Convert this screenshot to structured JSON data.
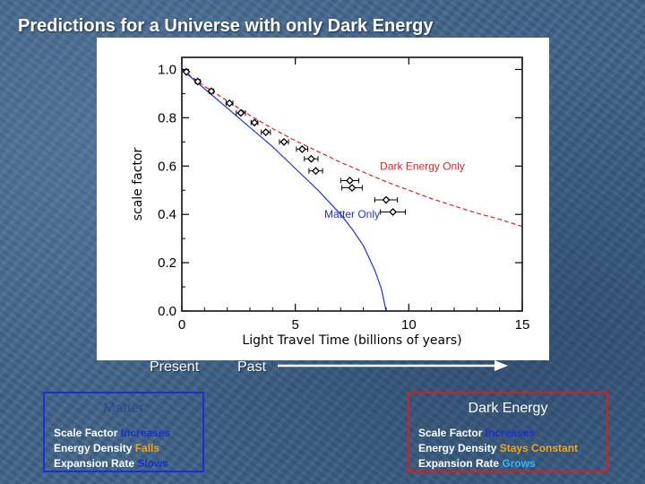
{
  "slide": {
    "title": "Predictions for a Universe with only Dark Energy"
  },
  "timeline": {
    "present": "Present",
    "past": "Past"
  },
  "panels": {
    "matter": {
      "title": "Matter",
      "lines": [
        {
          "label": "Scale Factor ",
          "value": "Increases"
        },
        {
          "label": "Energy Density ",
          "value": "Falls"
        },
        {
          "label": "Expansion Rate ",
          "value": "Slows"
        }
      ]
    },
    "dark_energy": {
      "title": "Dark Energy",
      "lines": [
        {
          "label": "Scale Factor ",
          "value": "Increases"
        },
        {
          "label": "Energy Density ",
          "value": "Stays Constant"
        },
        {
          "label": "Expansion Rate ",
          "value": "Grows"
        }
      ]
    }
  },
  "colors": {
    "matter_border": "#1b2fd6",
    "dark_energy_border": "#d81d1d",
    "matter_curve": "#2233cc",
    "dark_energy_curve": "#dd2222",
    "highlight_blue": "#1d2fd2",
    "highlight_orange": "#f6a019",
    "highlight_cyan": "#33b4ff"
  },
  "chart_data": {
    "type": "scatter",
    "xlabel": "Light Travel Time (billions of years)",
    "ylabel": "scale factor",
    "xlim": [
      0,
      15
    ],
    "ylim": [
      0,
      1.05
    ],
    "xticks": [
      0,
      5,
      10,
      15
    ],
    "yticks": [
      0.0,
      0.2,
      0.4,
      0.6,
      0.8,
      1.0
    ],
    "grid": false,
    "series": [
      {
        "name": "Dark Energy Only",
        "kind": "line",
        "x": [
          0,
          1,
          2,
          3,
          4,
          5,
          6,
          7,
          8,
          9,
          10,
          11,
          12,
          13,
          14,
          15
        ],
        "y": [
          1.0,
          0.93,
          0.87,
          0.81,
          0.755,
          0.705,
          0.66,
          0.615,
          0.575,
          0.535,
          0.5,
          0.465,
          0.435,
          0.405,
          0.38,
          0.35
        ]
      },
      {
        "name": "Matter Only",
        "kind": "line",
        "x": [
          0,
          1,
          2,
          3,
          4,
          5,
          6,
          7,
          7.5,
          8,
          8.5,
          8.8,
          9.0
        ],
        "y": [
          1.0,
          0.92,
          0.84,
          0.76,
          0.68,
          0.59,
          0.5,
          0.4,
          0.34,
          0.27,
          0.17,
          0.09,
          0.0
        ]
      },
      {
        "name": "",
        "kind": "points",
        "x": [
          0.2,
          0.7,
          1.3,
          2.1,
          2.6,
          3.2,
          3.7,
          4.5,
          5.3,
          5.7,
          5.9,
          7.4,
          7.5,
          9.0,
          9.3
        ],
        "y": [
          0.99,
          0.95,
          0.91,
          0.86,
          0.82,
          0.78,
          0.74,
          0.7,
          0.67,
          0.63,
          0.58,
          0.54,
          0.51,
          0.46,
          0.41
        ],
        "xerr": [
          0.05,
          0.1,
          0.1,
          0.15,
          0.2,
          0.15,
          0.2,
          0.2,
          0.25,
          0.3,
          0.3,
          0.4,
          0.45,
          0.5,
          0.55
        ]
      }
    ],
    "annotations": [
      {
        "text": "Dark Energy Only",
        "x": 10.6,
        "y": 0.6
      },
      {
        "text": "Matter Only",
        "x": 7.5,
        "y": 0.4
      }
    ]
  }
}
